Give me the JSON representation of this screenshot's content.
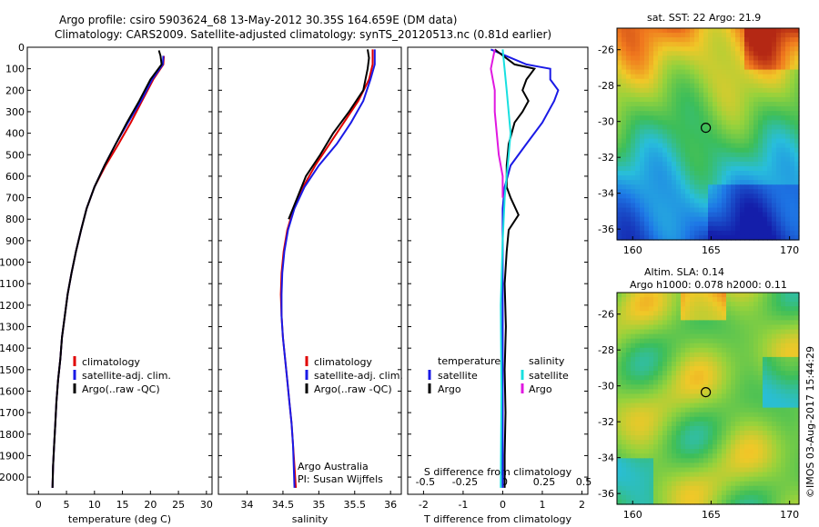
{
  "title_line1": "Argo profile: csiro 5903624_68 13-May-2012 30.35S 164.659E (DM data)",
  "title_line2": "Climatology: CARS2009. Satellite-adjusted climatology: synTS_20120513.nc (0.81d earlier)",
  "timestamp": "©IMOS 03-Aug-2017 15:44:29",
  "colors": {
    "climatology": "#e00000",
    "satellite": "#1a1ae6",
    "argo": "#000000",
    "sal_satellite": "#18e0e0",
    "sal_argo": "#e018e0"
  },
  "chart_data": [
    {
      "type": "line",
      "name": "temperature",
      "xlabel": "temperature (deg C)",
      "ylabel": "",
      "xlim": [
        -2,
        31
      ],
      "ylim": [
        2080,
        0
      ],
      "xticks": [
        0,
        5,
        10,
        15,
        20,
        25,
        30
      ],
      "yticks": [
        0,
        100,
        200,
        300,
        400,
        500,
        600,
        700,
        800,
        900,
        1000,
        1100,
        1200,
        1300,
        1400,
        1500,
        1600,
        1700,
        1800,
        1900,
        2000
      ],
      "legend": [
        "climatology",
        "satellite-adj. clim.",
        "Argo(..raw -QC)"
      ],
      "series": [
        {
          "name": "climatology",
          "color": "#e00000",
          "points": [
            [
              22.4,
              40
            ],
            [
              22.3,
              80
            ],
            [
              20.5,
              150
            ],
            [
              18.5,
              250
            ],
            [
              16.5,
              350
            ],
            [
              14.3,
              450
            ],
            [
              12,
              550
            ],
            [
              10,
              650
            ],
            [
              8.6,
              750
            ],
            [
              7.6,
              850
            ],
            [
              6.7,
              950
            ],
            [
              5.9,
              1050
            ],
            [
              5.2,
              1150
            ],
            [
              4.7,
              1250
            ],
            [
              4.2,
              1350
            ],
            [
              3.9,
              1450
            ],
            [
              3.5,
              1550
            ],
            [
              3.2,
              1650
            ],
            [
              3,
              1750
            ],
            [
              2.8,
              1850
            ],
            [
              2.6,
              1950
            ],
            [
              2.5,
              2050
            ]
          ]
        },
        {
          "name": "satellite-adj. clim.",
          "color": "#1a1ae6",
          "points": [
            [
              22.3,
              40
            ],
            [
              22.2,
              80
            ],
            [
              20.3,
              150
            ],
            [
              18.3,
              250
            ],
            [
              16,
              350
            ],
            [
              13.8,
              450
            ],
            [
              11.8,
              550
            ],
            [
              10,
              650
            ],
            [
              8.6,
              750
            ],
            [
              7.6,
              850
            ],
            [
              6.7,
              950
            ],
            [
              5.9,
              1050
            ],
            [
              5.2,
              1150
            ],
            [
              4.7,
              1250
            ],
            [
              4.2,
              1350
            ],
            [
              3.9,
              1450
            ],
            [
              3.5,
              1550
            ],
            [
              3.2,
              1650
            ],
            [
              3,
              1750
            ],
            [
              2.8,
              1850
            ],
            [
              2.6,
              1950
            ],
            [
              2.5,
              2050
            ]
          ]
        },
        {
          "name": "Argo(..raw -QC)",
          "color": "#000000",
          "points": [
            [
              21.5,
              15
            ],
            [
              21.8,
              40
            ],
            [
              22,
              80
            ],
            [
              20,
              150
            ],
            [
              18,
              250
            ],
            [
              15.8,
              350
            ],
            [
              13.8,
              450
            ],
            [
              11.8,
              550
            ],
            [
              10,
              650
            ],
            [
              8.6,
              750
            ],
            [
              7.6,
              850
            ],
            [
              6.7,
              950
            ],
            [
              5.9,
              1050
            ],
            [
              5.2,
              1150
            ],
            [
              4.7,
              1250
            ],
            [
              4.2,
              1350
            ],
            [
              3.9,
              1450
            ],
            [
              3.5,
              1550
            ],
            [
              3.2,
              1650
            ],
            [
              3,
              1750
            ],
            [
              2.8,
              1850
            ],
            [
              2.6,
              1950
            ],
            [
              2.5,
              2050
            ]
          ]
        }
      ]
    },
    {
      "type": "line",
      "name": "salinity",
      "xlabel": "salinity",
      "xlim": [
        33.6,
        36.15
      ],
      "ylim": [
        2080,
        0
      ],
      "xticks": [
        34,
        34.5,
        35,
        35.5,
        36
      ],
      "legend": [
        "climatology",
        "satellite-adj. clim.",
        "Argo(..raw -QC)"
      ],
      "annotation": [
        "Argo Australia",
        "PI: Susan Wijffels"
      ],
      "series": [
        {
          "name": "climatology",
          "color": "#e00000",
          "points": [
            [
              35.75,
              10
            ],
            [
              35.75,
              80
            ],
            [
              35.7,
              150
            ],
            [
              35.55,
              250
            ],
            [
              35.35,
              350
            ],
            [
              35.15,
              450
            ],
            [
              34.95,
              550
            ],
            [
              34.78,
              650
            ],
            [
              34.65,
              750
            ],
            [
              34.56,
              850
            ],
            [
              34.51,
              950
            ],
            [
              34.48,
              1050
            ],
            [
              34.47,
              1150
            ],
            [
              34.48,
              1250
            ],
            [
              34.5,
              1350
            ],
            [
              34.53,
              1450
            ],
            [
              34.56,
              1550
            ],
            [
              34.59,
              1650
            ],
            [
              34.62,
              1750
            ],
            [
              34.64,
              1850
            ],
            [
              34.66,
              1950
            ],
            [
              34.68,
              2050
            ]
          ]
        },
        {
          "name": "satellite-adj. clim.",
          "color": "#1a1ae6",
          "points": [
            [
              35.78,
              10
            ],
            [
              35.78,
              80
            ],
            [
              35.72,
              150
            ],
            [
              35.62,
              250
            ],
            [
              35.45,
              350
            ],
            [
              35.25,
              450
            ],
            [
              35,
              550
            ],
            [
              34.8,
              650
            ],
            [
              34.66,
              750
            ],
            [
              34.57,
              850
            ],
            [
              34.52,
              950
            ],
            [
              34.49,
              1050
            ],
            [
              34.48,
              1150
            ],
            [
              34.48,
              1250
            ],
            [
              34.5,
              1350
            ],
            [
              34.53,
              1450
            ],
            [
              34.56,
              1550
            ],
            [
              34.59,
              1650
            ],
            [
              34.62,
              1750
            ],
            [
              34.64,
              1850
            ],
            [
              34.65,
              1950
            ],
            [
              34.66,
              2050
            ]
          ]
        },
        {
          "name": "Argo(..raw -QC)",
          "color": "#000000",
          "points": [
            [
              35.68,
              10
            ],
            [
              35.7,
              50
            ],
            [
              35.68,
              100
            ],
            [
              35.62,
              200
            ],
            [
              35.42,
              300
            ],
            [
              35.2,
              400
            ],
            [
              35.02,
              500
            ],
            [
              34.82,
              600
            ],
            [
              34.7,
              700
            ],
            [
              34.58,
              800
            ]
          ]
        }
      ]
    },
    {
      "type": "line",
      "name": "difference",
      "xlabel": "T difference from climatology",
      "xlabel_top": "S difference from climatology",
      "xlim": [
        -2.4,
        2.15
      ],
      "ylim": [
        2080,
        0
      ],
      "xticks_T": [
        -2,
        -1,
        0,
        1,
        2
      ],
      "xticks_S": [
        "-0.5",
        "-0.25",
        "0",
        "0.25",
        "0.5"
      ],
      "legend_temperature": [
        "temperature",
        "satellite",
        "Argo"
      ],
      "legend_salinity": [
        "salinity",
        "satellite",
        "Argo"
      ],
      "series": [
        {
          "name": "T satellite",
          "color": "#1a1ae6",
          "points": [
            [
              -0.3,
              10
            ],
            [
              0.6,
              80
            ],
            [
              0.9,
              90
            ],
            [
              1.2,
              100
            ],
            [
              1.2,
              150
            ],
            [
              1.4,
              200
            ],
            [
              1.3,
              250
            ],
            [
              1.0,
              350
            ],
            [
              0.6,
              450
            ],
            [
              0.2,
              550
            ],
            [
              0.05,
              650
            ],
            [
              0,
              750
            ],
            [
              0,
              900
            ],
            [
              0,
              1200
            ],
            [
              0,
              1600
            ],
            [
              0,
              2050
            ]
          ]
        },
        {
          "name": "T Argo",
          "color": "#000000",
          "points": [
            [
              -0.2,
              10
            ],
            [
              0.3,
              80
            ],
            [
              0.8,
              100
            ],
            [
              0.6,
              150
            ],
            [
              0.5,
              200
            ],
            [
              0.65,
              250
            ],
            [
              0.5,
              300
            ],
            [
              0.3,
              350
            ],
            [
              0.15,
              450
            ],
            [
              0.1,
              550
            ],
            [
              0.1,
              650
            ],
            [
              0.2,
              700
            ],
            [
              0.4,
              780
            ],
            [
              0.15,
              850
            ],
            [
              0.1,
              950
            ],
            [
              0.05,
              1100
            ],
            [
              0.08,
              1300
            ],
            [
              0.05,
              1500
            ],
            [
              0.07,
              1700
            ],
            [
              0.05,
              1900
            ],
            [
              0.05,
              2050
            ]
          ]
        },
        {
          "name": "S satellite",
          "color": "#18e0e0",
          "points": [
            [
              0,
              10
            ],
            [
              0.1,
              200
            ],
            [
              0.2,
              400
            ],
            [
              0.15,
              500
            ],
            [
              0.05,
              700
            ],
            [
              0,
              900
            ],
            [
              -0.05,
              1200
            ],
            [
              -0.03,
              1600
            ],
            [
              -0.05,
              2050
            ]
          ]
        },
        {
          "name": "S Argo",
          "color": "#e018e0",
          "points": [
            [
              -0.2,
              10
            ],
            [
              -0.3,
              100
            ],
            [
              -0.2,
              200
            ],
            [
              -0.2,
              300
            ],
            [
              -0.15,
              400
            ],
            [
              -0.1,
              500
            ],
            [
              0,
              600
            ],
            [
              0,
              700
            ]
          ]
        }
      ]
    }
  ],
  "maps": [
    {
      "name": "sst",
      "title": "sat. SST: 22 Argo: 21.9",
      "xticks": [
        160,
        165,
        170
      ],
      "yticks": [
        -26,
        -28,
        -30,
        -32,
        -34,
        -36
      ],
      "marker": [
        164.659,
        -30.35
      ]
    },
    {
      "name": "sla",
      "title_line1": "Altim. SLA: 0.14",
      "title_line2": "Argo h1000: 0.078 h2000: 0.11",
      "xticks": [
        160,
        165,
        170
      ],
      "yticks": [
        -26,
        -28,
        -30,
        -32,
        -34,
        -36
      ],
      "marker": [
        164.659,
        -30.35
      ]
    }
  ]
}
